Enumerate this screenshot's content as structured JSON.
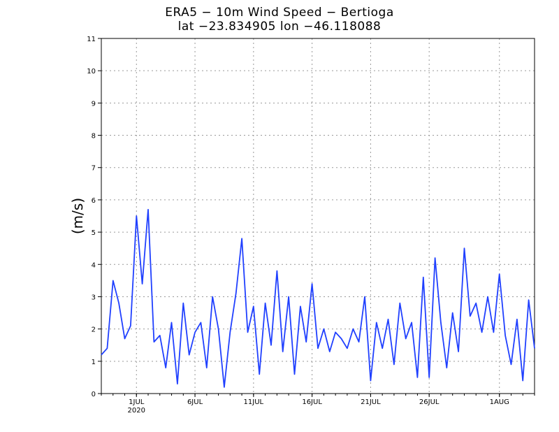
{
  "chart_data": {
    "type": "line",
    "title": "ERA5 − 10m Wind Speed − Bertioga",
    "subtitle": "lat −23.834905 lon −46.118088",
    "xlabel": "",
    "ylabel": "(m/s)",
    "ylim": [
      0,
      11
    ],
    "yticks": [
      0,
      1,
      2,
      3,
      4,
      5,
      6,
      7,
      8,
      9,
      10,
      11
    ],
    "xlim": [
      "2020-06-28",
      "2020-08-04"
    ],
    "xticks": [
      {
        "date": "2020-07-01",
        "label": "1JUL",
        "sublabel": "2020"
      },
      {
        "date": "2020-07-06",
        "label": "6JUL"
      },
      {
        "date": "2020-07-11",
        "label": "11JUL"
      },
      {
        "date": "2020-07-16",
        "label": "16JUL"
      },
      {
        "date": "2020-07-21",
        "label": "21JUL"
      },
      {
        "date": "2020-07-26",
        "label": "26JUL"
      },
      {
        "date": "2020-08-01",
        "label": "1AUG"
      }
    ],
    "grid": true,
    "line_color": "#2040ff",
    "series": [
      {
        "x": [
          "2020-06-28",
          "2020-06-28T12",
          "2020-06-29",
          "2020-06-29T12",
          "2020-06-30",
          "2020-06-30T12",
          "2020-07-01",
          "2020-07-01T12",
          "2020-07-02",
          "2020-07-02T12",
          "2020-07-03",
          "2020-07-03T12",
          "2020-07-04",
          "2020-07-04T12",
          "2020-07-05",
          "2020-07-05T12",
          "2020-07-06",
          "2020-07-06T12",
          "2020-07-07",
          "2020-07-07T12",
          "2020-07-08",
          "2020-07-08T12",
          "2020-07-09",
          "2020-07-09T12",
          "2020-07-10",
          "2020-07-10T12",
          "2020-07-11",
          "2020-07-11T12",
          "2020-07-12",
          "2020-07-12T12",
          "2020-07-13",
          "2020-07-13T12",
          "2020-07-14",
          "2020-07-14T12",
          "2020-07-15",
          "2020-07-15T12",
          "2020-07-16",
          "2020-07-16T12",
          "2020-07-17",
          "2020-07-17T12",
          "2020-07-18",
          "2020-07-18T12",
          "2020-07-19",
          "2020-07-19T12",
          "2020-07-20",
          "2020-07-20T12",
          "2020-07-21",
          "2020-07-21T12",
          "2020-07-22",
          "2020-07-22T12",
          "2020-07-23",
          "2020-07-23T12",
          "2020-07-24",
          "2020-07-24T12",
          "2020-07-25",
          "2020-07-25T12",
          "2020-07-26",
          "2020-07-26T12",
          "2020-07-27",
          "2020-07-27T12",
          "2020-07-28",
          "2020-07-28T12",
          "2020-07-29",
          "2020-07-29T12",
          "2020-07-30",
          "2020-07-30T12",
          "2020-07-31",
          "2020-07-31T12",
          "2020-08-01",
          "2020-08-01T12",
          "2020-08-02",
          "2020-08-02T12",
          "2020-08-03",
          "2020-08-03T12",
          "2020-08-04"
        ],
        "values": [
          1.2,
          1.4,
          3.5,
          2.8,
          1.7,
          2.1,
          5.5,
          3.4,
          5.7,
          1.6,
          1.8,
          0.8,
          2.2,
          0.3,
          2.8,
          1.2,
          1.9,
          2.2,
          0.8,
          3.0,
          2.0,
          0.2,
          1.9,
          3.1,
          4.8,
          1.9,
          2.7,
          0.6,
          2.8,
          1.5,
          3.8,
          1.3,
          3.0,
          0.6,
          2.7,
          1.6,
          3.4,
          1.4,
          2.0,
          1.3,
          1.9,
          1.7,
          1.4,
          2.0,
          1.6,
          3.0,
          0.4,
          2.2,
          1.4,
          2.3,
          0.9,
          2.8,
          1.7,
          2.2,
          0.5,
          3.6,
          0.5,
          4.2,
          2.2,
          0.8,
          2.5,
          1.3,
          4.5,
          2.4,
          2.8,
          1.9,
          3.0,
          1.9,
          3.7,
          1.8,
          0.9,
          2.3,
          0.4,
          2.9,
          1.4
        ]
      }
    ]
  }
}
